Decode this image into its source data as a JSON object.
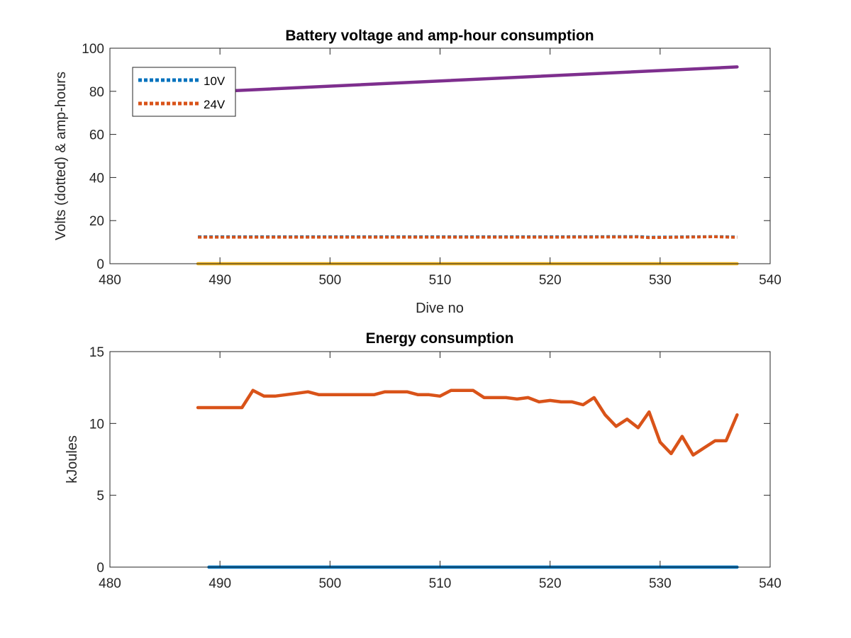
{
  "chart_data": [
    {
      "type": "line",
      "title": "Battery voltage and amp-hour consumption",
      "xlabel": "Dive no",
      "ylabel": "Volts (dotted) & amp-hours",
      "xlim": [
        480,
        540
      ],
      "ylim": [
        0,
        100
      ],
      "xticks": [
        "480",
        "490",
        "500",
        "510",
        "520",
        "530",
        "540"
      ],
      "yticks": [
        "0",
        "20",
        "40",
        "60",
        "80",
        "100"
      ],
      "legend_position": "top-left",
      "series": [
        {
          "name": "10V",
          "style": "dotted",
          "color": "#0072BD",
          "points": [
            [
              488,
              12.5
            ],
            [
              500,
              12.5
            ],
            [
              510,
              12.5
            ],
            [
              520,
              12.5
            ],
            [
              528,
              12.6
            ],
            [
              529,
              12.3
            ],
            [
              535,
              12.6
            ],
            [
              537,
              12.4
            ]
          ]
        },
        {
          "name": "24V",
          "style": "dotted",
          "color": "#D95319",
          "points": [
            [
              488,
              12.3
            ],
            [
              500,
              12.3
            ],
            [
              510,
              12.3
            ],
            [
              520,
              12.3
            ],
            [
              528,
              12.4
            ],
            [
              529,
              12.1
            ],
            [
              535,
              12.5
            ],
            [
              537,
              12.2
            ]
          ]
        },
        {
          "style": "solid",
          "color": "#EDB120",
          "points": [
            [
              488,
              0
            ],
            [
              537,
              0
            ]
          ]
        },
        {
          "style": "solid",
          "color": "#7E2F8E",
          "points": [
            [
              488,
              79.5
            ],
            [
              537,
              91.3
            ]
          ]
        }
      ]
    },
    {
      "type": "line",
      "title": "Energy consumption",
      "xlabel": "",
      "ylabel": "kJoules",
      "xlim": [
        480,
        540
      ],
      "ylim": [
        0,
        15
      ],
      "xticks": [
        "480",
        "490",
        "500",
        "510",
        "520",
        "530",
        "540"
      ],
      "yticks": [
        "0",
        "5",
        "10",
        "15"
      ],
      "series": [
        {
          "style": "solid",
          "color": "#0072BD",
          "points": [
            [
              489,
              0
            ],
            [
              537,
              0
            ]
          ]
        },
        {
          "style": "solid",
          "color": "#D95319",
          "points": [
            [
              488,
              11.1
            ],
            [
              489,
              11.1
            ],
            [
              490,
              11.1
            ],
            [
              491,
              11.1
            ],
            [
              492,
              11.1
            ],
            [
              493,
              12.3
            ],
            [
              494,
              11.9
            ],
            [
              495,
              11.9
            ],
            [
              496,
              12.0
            ],
            [
              497,
              12.1
            ],
            [
              498,
              12.2
            ],
            [
              499,
              12.0
            ],
            [
              500,
              12.0
            ],
            [
              501,
              12.0
            ],
            [
              502,
              12.0
            ],
            [
              503,
              12.0
            ],
            [
              504,
              12.0
            ],
            [
              505,
              12.2
            ],
            [
              506,
              12.2
            ],
            [
              507,
              12.2
            ],
            [
              508,
              12.0
            ],
            [
              509,
              12.0
            ],
            [
              510,
              11.9
            ],
            [
              511,
              12.3
            ],
            [
              512,
              12.3
            ],
            [
              513,
              12.3
            ],
            [
              514,
              11.8
            ],
            [
              515,
              11.8
            ],
            [
              516,
              11.8
            ],
            [
              517,
              11.7
            ],
            [
              518,
              11.8
            ],
            [
              519,
              11.5
            ],
            [
              520,
              11.6
            ],
            [
              521,
              11.5
            ],
            [
              522,
              11.5
            ],
            [
              523,
              11.3
            ],
            [
              524,
              11.8
            ],
            [
              525,
              10.6
            ],
            [
              526,
              9.8
            ],
            [
              527,
              10.3
            ],
            [
              528,
              9.7
            ],
            [
              529,
              10.8
            ],
            [
              530,
              8.7
            ],
            [
              531,
              7.9
            ],
            [
              532,
              9.1
            ],
            [
              533,
              7.8
            ],
            [
              534,
              8.3
            ],
            [
              535,
              8.8
            ],
            [
              536,
              8.8
            ],
            [
              537,
              10.6
            ]
          ]
        }
      ]
    }
  ]
}
